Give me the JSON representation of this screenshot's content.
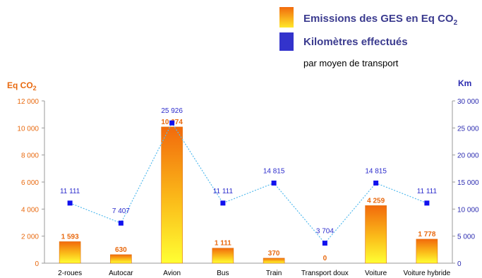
{
  "chart_data": {
    "type": "bar",
    "legend": {
      "position": "top-right",
      "subtitle": "par moyen de transport"
    },
    "categories": [
      "2-roues",
      "Autocar",
      "Avion",
      "Bus",
      "Train",
      "Transport doux",
      "Voiture",
      "Voiture hybride"
    ],
    "series": [
      {
        "name": "Emissions des GES en Eq CO",
        "name_subscript": "2",
        "type": "bar",
        "axis": "left",
        "color": "#f07a10",
        "values": [
          1593,
          630,
          10074,
          1111,
          370,
          0,
          4259,
          1778
        ],
        "labels": [
          "1 593",
          "630",
          "10 074",
          "1 111",
          "370",
          "0",
          "4 259",
          "1 778"
        ]
      },
      {
        "name": "Kilomètres effectués",
        "type": "line",
        "axis": "right",
        "color": "#2b2bcc",
        "values": [
          11111,
          7407,
          25926,
          11111,
          14815,
          3704,
          14815,
          11111
        ],
        "labels": [
          "11 111",
          "7 407",
          "25 926",
          "11 111",
          "14 815",
          "3 704",
          "14 815",
          "11 111"
        ]
      }
    ],
    "y_left": {
      "label": "Eq CO",
      "label_subscript": "2",
      "ylim": [
        0,
        12000
      ],
      "ticks": [
        0,
        2000,
        4000,
        6000,
        8000,
        10000,
        12000
      ],
      "tick_labels": [
        "0",
        "2 000",
        "4 000",
        "6 000",
        "8 000",
        "10 000",
        "12 000"
      ]
    },
    "y_right": {
      "label": "Km",
      "ylim": [
        0,
        30000
      ],
      "ticks": [
        0,
        5000,
        10000,
        15000,
        20000,
        25000,
        30000
      ],
      "tick_labels": [
        "0",
        "5 000",
        "10 000",
        "15 000",
        "20 000",
        "25 000",
        "30 000"
      ]
    },
    "grid": false
  }
}
